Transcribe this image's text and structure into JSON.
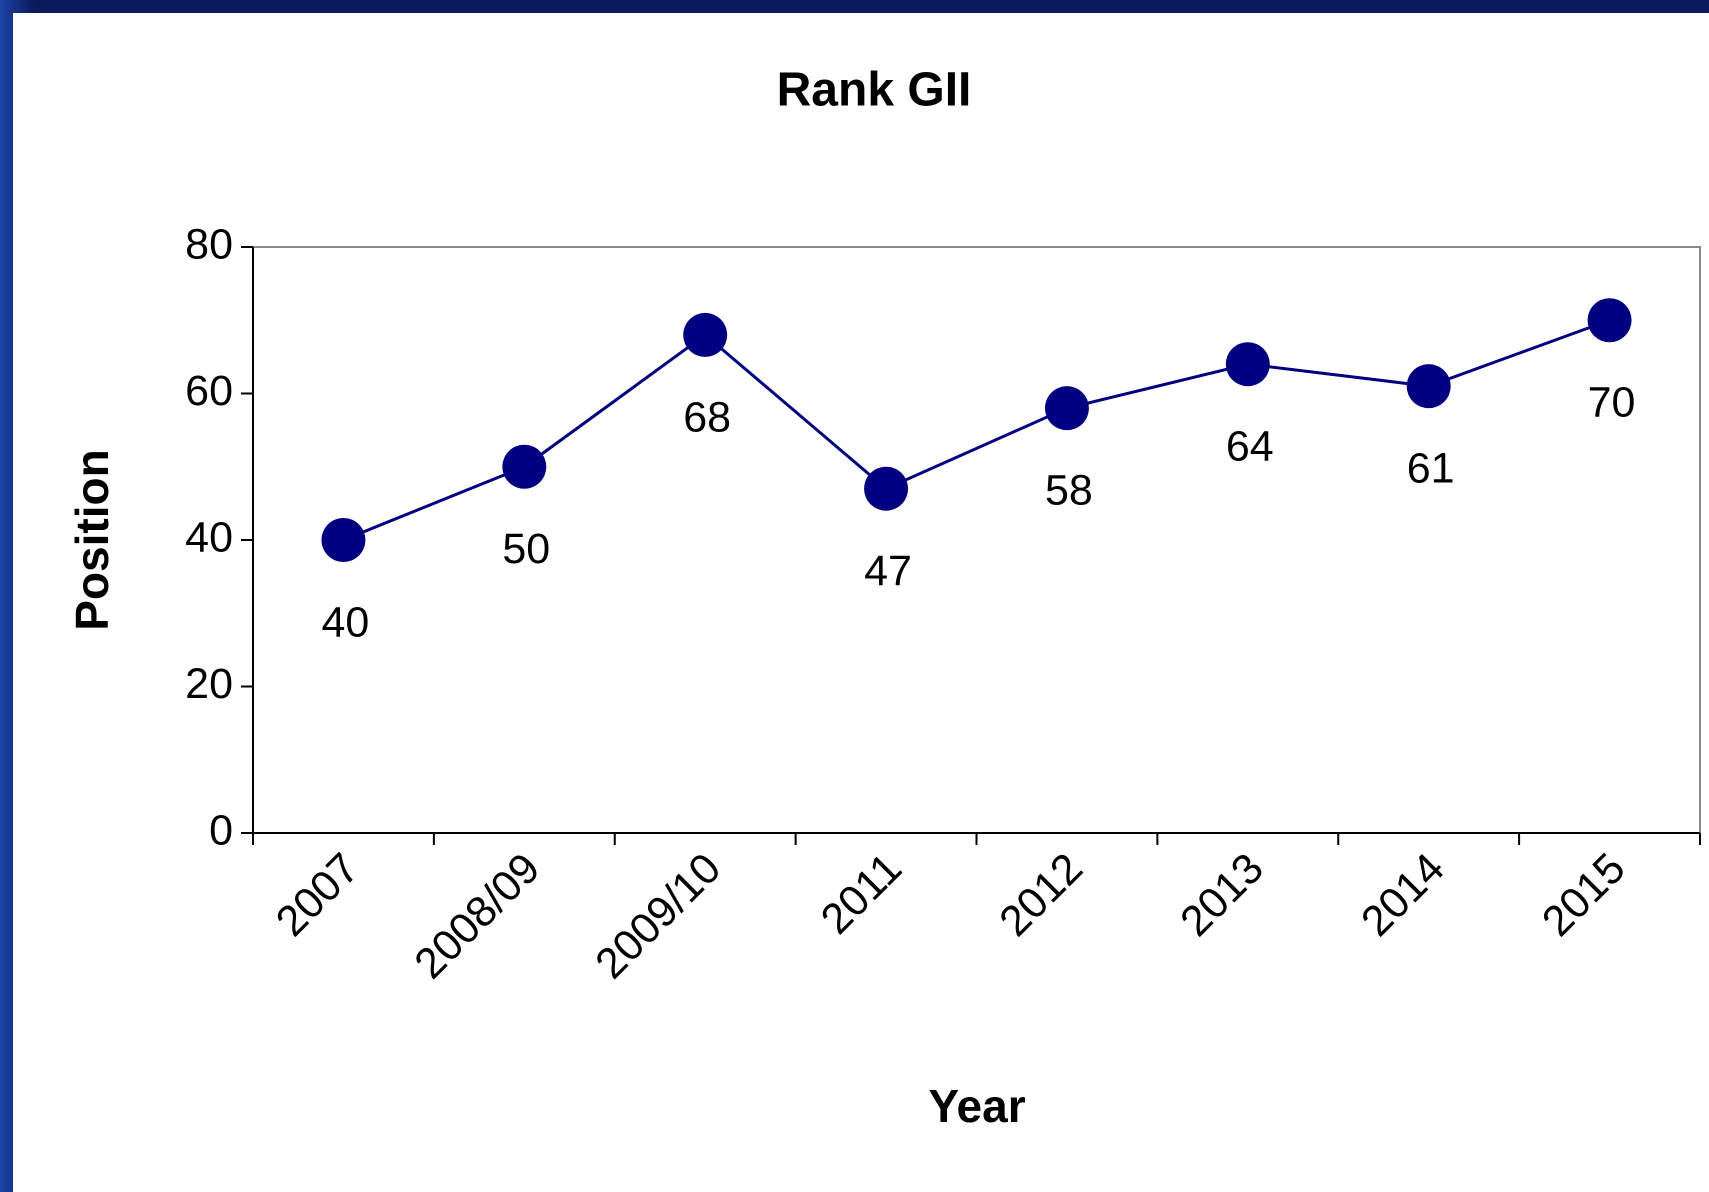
{
  "chart_data": {
    "type": "line",
    "title": "Rank GII",
    "x_label": "Year",
    "y_label": "Position",
    "categories": [
      "2007",
      "2008/09",
      "2009/10",
      "2011",
      "2012",
      "2013",
      "2014",
      "2015"
    ],
    "series": [
      {
        "name": "Rank GII",
        "color": "#000080",
        "values": [
          40,
          50,
          68,
          47,
          58,
          64,
          61,
          70
        ]
      }
    ],
    "ylim": [
      0,
      80
    ],
    "yticks": [
      0,
      20,
      40,
      60,
      80
    ]
  }
}
